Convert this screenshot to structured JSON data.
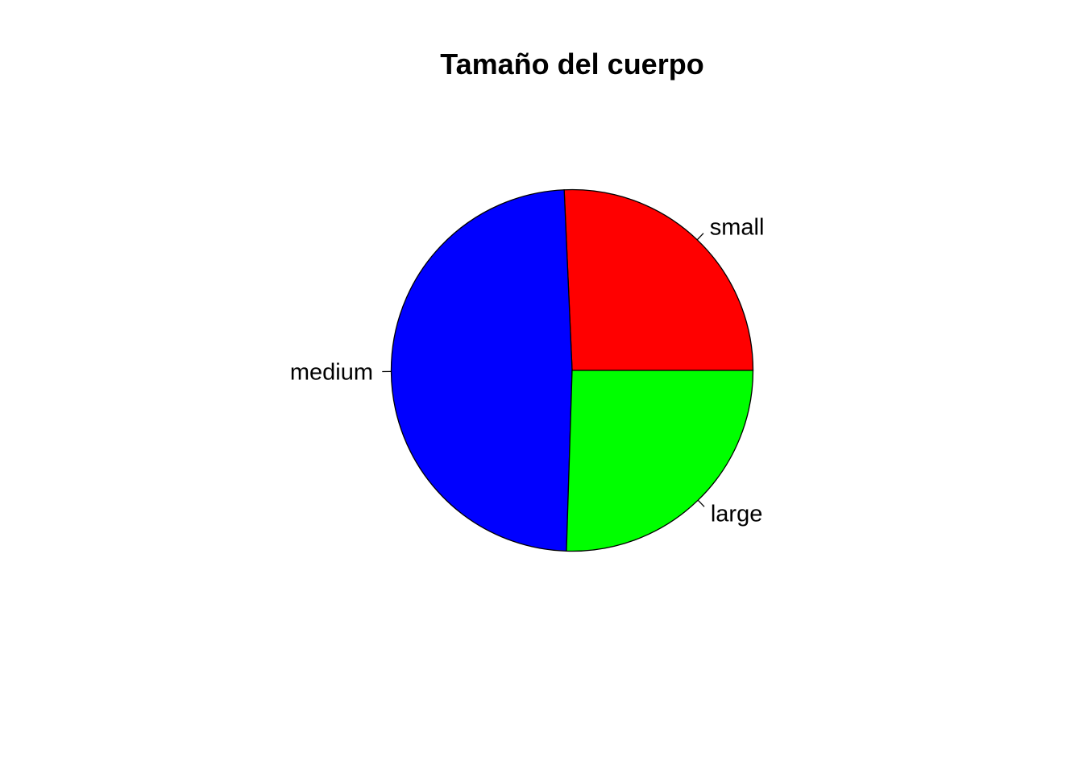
{
  "chart_data": {
    "type": "pie",
    "title": "Tamaño del cuerpo",
    "categories": [
      "small",
      "medium",
      "large"
    ],
    "values": [
      0.257,
      0.488,
      0.255
    ],
    "colors": [
      "#FF0000",
      "#0000FF",
      "#00FF00"
    ],
    "start_angle_deg": 0,
    "direction": "counterclockwise",
    "border_color": "#000000"
  }
}
